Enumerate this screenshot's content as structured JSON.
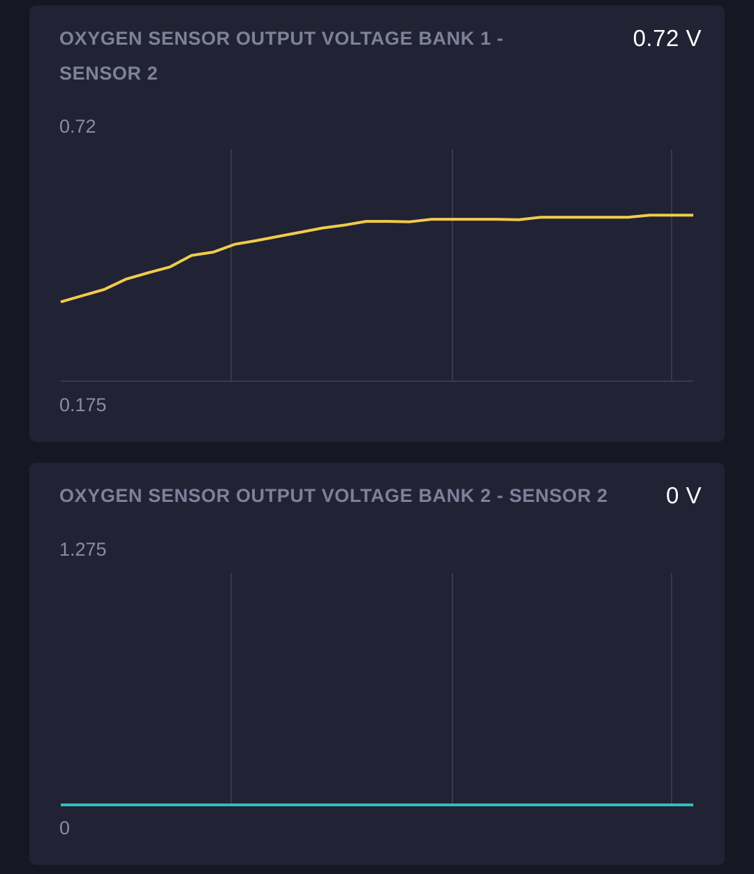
{
  "cards": [
    {
      "title": "OXYGEN SENSOR OUTPUT VOLTAGE BANK 1 - SENSOR 2",
      "value": "0.72 V",
      "chart_data": {
        "type": "line",
        "y_max_label": "0.72",
        "y_min_label": "0.175",
        "ylim": [
          0.175,
          0.72
        ],
        "grid": "vertical",
        "color": "#f2cc4a",
        "values": [
          0.366,
          0.381,
          0.396,
          0.421,
          0.436,
          0.45,
          0.478,
          0.486,
          0.505,
          0.514,
          0.524,
          0.534,
          0.544,
          0.551,
          0.56,
          0.56,
          0.559,
          0.565,
          0.565,
          0.565,
          0.565,
          0.564,
          0.57,
          0.57,
          0.57,
          0.57,
          0.57,
          0.575,
          0.575,
          0.575
        ]
      }
    },
    {
      "title": "OXYGEN SENSOR OUTPUT VOLTAGE BANK 2 - SENSOR 2",
      "value": "0 V",
      "chart_data": {
        "type": "line",
        "y_max_label": "1.275",
        "y_min_label": "0",
        "ylim": [
          0,
          1.275
        ],
        "grid": "vertical",
        "color": "#2fc0bd",
        "values": [
          0,
          0,
          0,
          0,
          0,
          0,
          0,
          0,
          0,
          0
        ]
      }
    }
  ]
}
